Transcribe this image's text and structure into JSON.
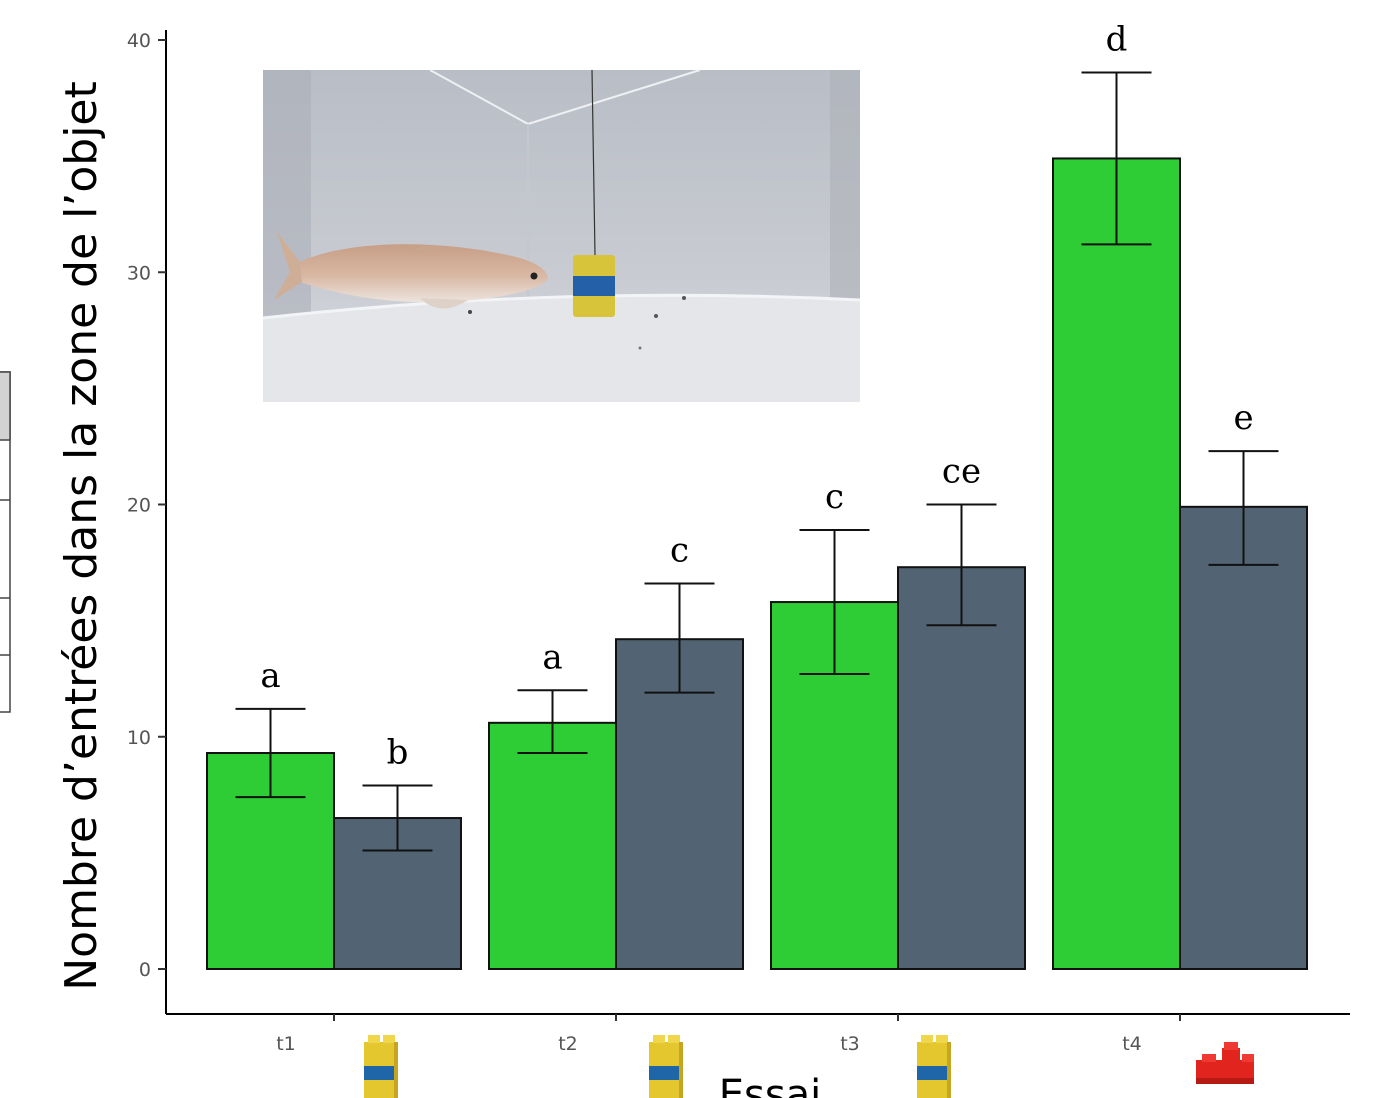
{
  "chart_data": {
    "type": "bar",
    "title": "",
    "xlabel": "Essai",
    "ylabel": "Nombre d’entrées dans la zone de l’objet",
    "ylim": [
      0,
      40
    ],
    "yticks": [
      0,
      10,
      20,
      30,
      40
    ],
    "categories": [
      "t1",
      "t2",
      "t3",
      "t4"
    ],
    "series": [
      {
        "color": "#2ecc35",
        "values": [
          9.3,
          10.6,
          15.8,
          34.9
        ],
        "err_low": [
          7.4,
          9.3,
          12.7,
          31.2
        ],
        "err_high": [
          11.2,
          12.0,
          18.9,
          38.6
        ],
        "letters": [
          "a",
          "a",
          "c",
          "d"
        ]
      },
      {
        "color": "#526373",
        "values": [
          6.5,
          14.2,
          17.3,
          19.9
        ],
        "err_low": [
          5.1,
          11.9,
          14.8,
          17.4
        ],
        "err_high": [
          7.9,
          16.6,
          20.0,
          22.3
        ],
        "letters": [
          "b",
          "c",
          "ce",
          "e"
        ]
      }
    ],
    "object_icons": [
      "yellow-blue-lego-block-icon",
      "yellow-blue-lego-block-icon",
      "yellow-blue-lego-block-icon",
      "red-lego-brick-icon"
    ],
    "inset_photo": "fish-tank-photo",
    "grid": false,
    "legend": "none"
  }
}
